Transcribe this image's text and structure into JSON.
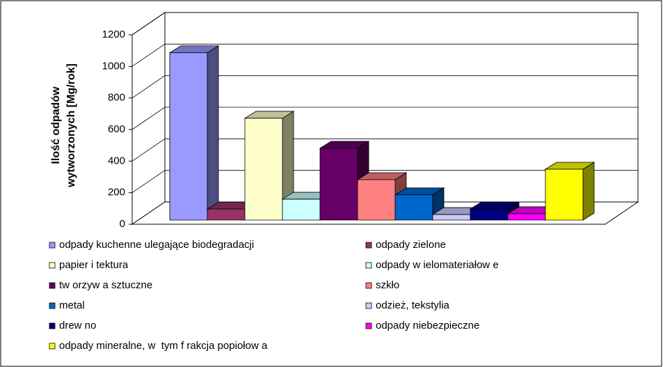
{
  "chart_data": {
    "type": "bar3d",
    "ylabel": [
      "Ilość odpadów",
      "wytworzonych [Mg/rok]"
    ],
    "categories": [
      "odpady kuchenne ulegające biodegradacji",
      "odpady zielone",
      "papier i tektura",
      "odpady w ielomateriałow e",
      "tw orzyw a sztuczne",
      "szkło",
      "metal",
      "odzież, tekstylia",
      "drew no",
      "odpady niebezpieczne",
      "odpady mineralne, w  tym f rakcja popiołow a"
    ],
    "values": [
      1060,
      70,
      645,
      132,
      455,
      256,
      160,
      35,
      70,
      40,
      322
    ],
    "colors": [
      "#9999ff",
      "#993366",
      "#ffffcc",
      "#ccffff",
      "#660066",
      "#ff8080",
      "#0066cc",
      "#ccccff",
      "#000080",
      "#ff00ff",
      "#ffff00"
    ],
    "ylim": [
      0,
      1200
    ],
    "yticks": [
      0,
      200,
      400,
      600,
      800,
      1000,
      1200
    ],
    "grid": true,
    "legend": "bottom"
  }
}
